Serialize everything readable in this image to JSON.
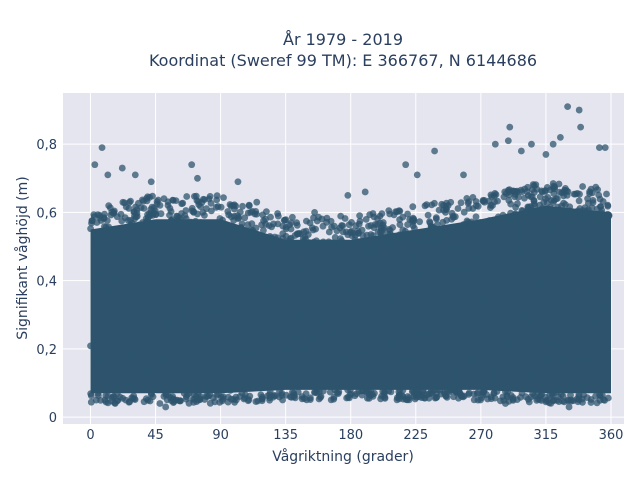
{
  "chart_data": {
    "type": "scatter",
    "title_line1": "År 1979 - 2019",
    "title_line2": "Koordinat (Sweref 99 TM): E 366767, N 6144686",
    "xlabel": "Vågriktning (grader)",
    "ylabel": "Signifikant våghöjd (m)",
    "xlim": [
      -19,
      369
    ],
    "ylim": [
      -0.02,
      0.95
    ],
    "x_ticks": [
      0,
      45,
      90,
      135,
      180,
      225,
      270,
      315,
      360
    ],
    "x_tick_labels": [
      "0",
      "45",
      "90",
      "135",
      "180",
      "225",
      "270",
      "315",
      "360"
    ],
    "y_ticks": [
      0,
      0.2,
      0.4,
      0.6,
      0.8
    ],
    "y_tick_labels": [
      "0",
      "0,2",
      "0,4",
      "0,6",
      "0,8"
    ],
    "grid": true,
    "marker_color": "#2e546d",
    "background_color": "#e5e5f0",
    "dense_band": [
      {
        "x": 0,
        "lo": 0.07,
        "hi": 0.55
      },
      {
        "x": 45,
        "lo": 0.07,
        "hi": 0.58
      },
      {
        "x": 90,
        "lo": 0.07,
        "hi": 0.58
      },
      {
        "x": 135,
        "lo": 0.08,
        "hi": 0.52
      },
      {
        "x": 180,
        "lo": 0.08,
        "hi": 0.52
      },
      {
        "x": 225,
        "lo": 0.08,
        "hi": 0.55
      },
      {
        "x": 270,
        "lo": 0.08,
        "hi": 0.58
      },
      {
        "x": 315,
        "lo": 0.07,
        "hi": 0.62
      },
      {
        "x": 360,
        "lo": 0.07,
        "hi": 0.6
      }
    ],
    "outliers": [
      {
        "x": 8,
        "y": 0.79
      },
      {
        "x": 3,
        "y": 0.74
      },
      {
        "x": 12,
        "y": 0.71
      },
      {
        "x": 22,
        "y": 0.73
      },
      {
        "x": 31,
        "y": 0.71
      },
      {
        "x": 42,
        "y": 0.69
      },
      {
        "x": 70,
        "y": 0.74
      },
      {
        "x": 74,
        "y": 0.7
      },
      {
        "x": 102,
        "y": 0.69
      },
      {
        "x": 115,
        "y": 0.63
      },
      {
        "x": 155,
        "y": 0.6
      },
      {
        "x": 178,
        "y": 0.65
      },
      {
        "x": 190,
        "y": 0.66
      },
      {
        "x": 218,
        "y": 0.74
      },
      {
        "x": 226,
        "y": 0.71
      },
      {
        "x": 238,
        "y": 0.78
      },
      {
        "x": 258,
        "y": 0.71
      },
      {
        "x": 280,
        "y": 0.8
      },
      {
        "x": 289,
        "y": 0.81
      },
      {
        "x": 290,
        "y": 0.85
      },
      {
        "x": 298,
        "y": 0.78
      },
      {
        "x": 305,
        "y": 0.8
      },
      {
        "x": 315,
        "y": 0.77
      },
      {
        "x": 320,
        "y": 0.8
      },
      {
        "x": 325,
        "y": 0.82
      },
      {
        "x": 330,
        "y": 0.91
      },
      {
        "x": 338,
        "y": 0.9
      },
      {
        "x": 339,
        "y": 0.85
      },
      {
        "x": 352,
        "y": 0.79
      },
      {
        "x": 356,
        "y": 0.79
      },
      {
        "x": 10,
        "y": 0.05
      },
      {
        "x": 48,
        "y": 0.04
      },
      {
        "x": 52,
        "y": 0.03
      },
      {
        "x": 287,
        "y": 0.04
      },
      {
        "x": 331,
        "y": 0.03
      },
      {
        "x": 268,
        "y": 0.05
      },
      {
        "x": 4,
        "y": 0.05
      },
      {
        "x": 60,
        "y": 0.05
      },
      {
        "x": 301,
        "y": 0.06
      }
    ]
  }
}
